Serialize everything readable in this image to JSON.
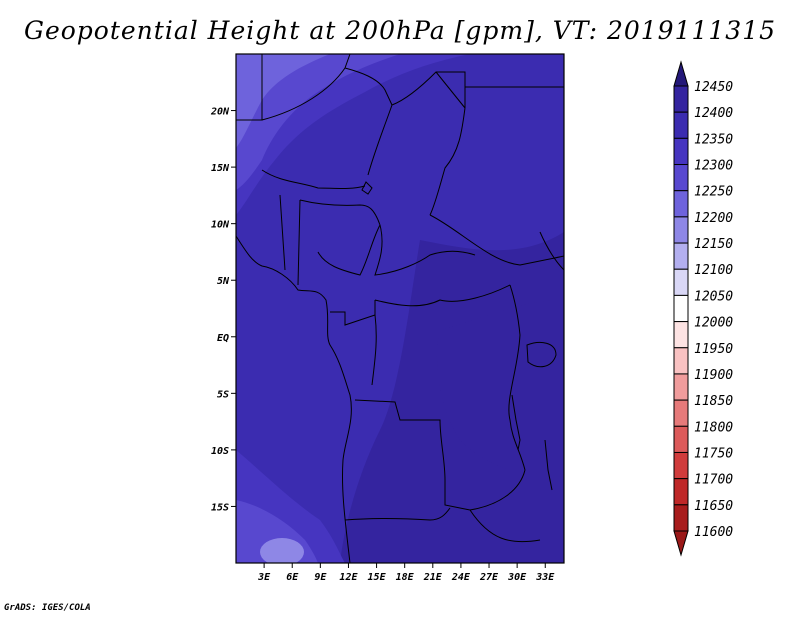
{
  "title": "Geopotential Height at 200hPa [gpm], VT: 2019111315",
  "credit": "GrADS: IGES/COLA",
  "map": {
    "lon_range": [
      0,
      35
    ],
    "lat_range": [
      -20,
      25
    ],
    "lon_ticks": [
      {
        "value": 3,
        "label": "3E"
      },
      {
        "value": 6,
        "label": "6E"
      },
      {
        "value": 9,
        "label": "9E"
      },
      {
        "value": 12,
        "label": "12E"
      },
      {
        "value": 15,
        "label": "15E"
      },
      {
        "value": 18,
        "label": "18E"
      },
      {
        "value": 21,
        "label": "21E"
      },
      {
        "value": 24,
        "label": "24E"
      },
      {
        "value": 27,
        "label": "27E"
      },
      {
        "value": 30,
        "label": "30E"
      },
      {
        "value": 33,
        "label": "33E"
      }
    ],
    "lat_ticks": [
      {
        "value": 20,
        "label": "20N"
      },
      {
        "value": 15,
        "label": "15N"
      },
      {
        "value": 10,
        "label": "10N"
      },
      {
        "value": 5,
        "label": "5N"
      },
      {
        "value": 0,
        "label": "EQ"
      },
      {
        "value": -5,
        "label": "5S"
      },
      {
        "value": -10,
        "label": "10S"
      },
      {
        "value": -15,
        "label": "15S"
      }
    ]
  },
  "colorbar": {
    "levels": [
      {
        "value": "12450",
        "color": "#2a1d8e"
      },
      {
        "value": "12400",
        "color": "#34249f"
      },
      {
        "value": "12350",
        "color": "#3b2cb0"
      },
      {
        "value": "12300",
        "color": "#4635c0"
      },
      {
        "value": "12250",
        "color": "#5848cf"
      },
      {
        "value": "12200",
        "color": "#6e63dc"
      },
      {
        "value": "12150",
        "color": "#8e87e6"
      },
      {
        "value": "12100",
        "color": "#b3afef"
      },
      {
        "value": "12050",
        "color": "#d9d7f6"
      },
      {
        "value": "12000",
        "color": "#ffffff"
      },
      {
        "value": "11950",
        "color": "#fde3e3"
      },
      {
        "value": "11900",
        "color": "#f9c2c2"
      },
      {
        "value": "11850",
        "color": "#f09c9c"
      },
      {
        "value": "11800",
        "color": "#e67a7a"
      },
      {
        "value": "11750",
        "color": "#dc5a5a"
      },
      {
        "value": "11700",
        "color": "#d03c3c"
      },
      {
        "value": "11650",
        "color": "#bf2828"
      },
      {
        "value": "11600",
        "color": "#a81c1c"
      }
    ],
    "top_arrow_color": "#241879",
    "bottom_arrow_color": "#9a1818"
  }
}
